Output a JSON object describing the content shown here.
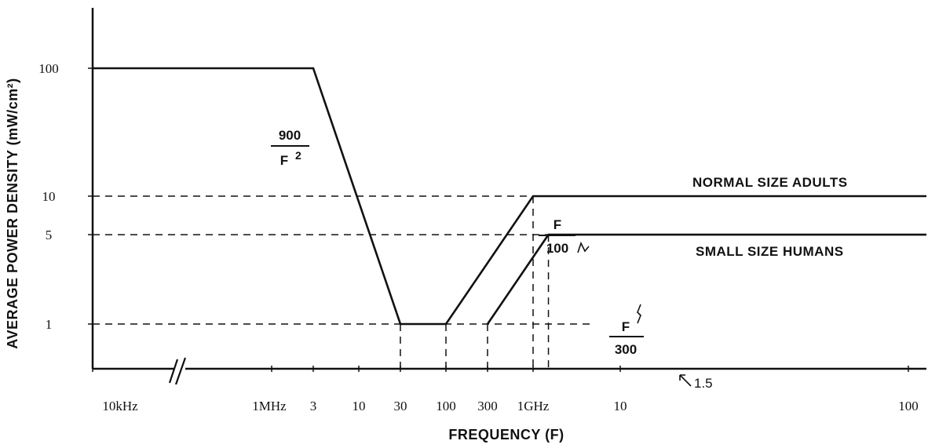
{
  "chart_data": {
    "type": "line",
    "xlabel": "FREQUENCY (F)",
    "ylabel": "AVERAGE POWER DENSITY (mW/cm²)",
    "x_scale": "log (broken axis)",
    "y_scale": "log",
    "x_tick_labels": [
      "10kHz",
      "1MHz",
      "3",
      "10",
      "30",
      "100",
      "300",
      "1GHz",
      "10",
      "100"
    ],
    "x_tick_values_mhz": [
      0.01,
      1,
      3,
      10,
      30,
      100,
      300,
      1000,
      10000,
      100000
    ],
    "y_tick_labels": [
      "100",
      "10",
      "5",
      "1"
    ],
    "y_tick_values": [
      100,
      10,
      5,
      1
    ],
    "series": [
      {
        "name": "NORMAL SIZE ADULTS",
        "x_mhz": [
          0.01,
          3,
          30,
          100,
          1000,
          100000
        ],
        "y": [
          100,
          100,
          1,
          1,
          10,
          10
        ]
      },
      {
        "name": "SMALL SIZE HUMANS",
        "x_mhz": [
          300,
          1500,
          100000
        ],
        "y": [
          1,
          5,
          5
        ]
      }
    ],
    "formula_labels": {
      "falloff": {
        "numerator": "900",
        "denominator": "F",
        "exponent": "2"
      },
      "adult_rise": {
        "numerator": "F",
        "denominator": "100"
      },
      "small_rise": {
        "numerator": "F",
        "denominator": "300"
      }
    },
    "extra_tick_label": "1.5",
    "legend": "inline labels at right",
    "grid": false
  }
}
